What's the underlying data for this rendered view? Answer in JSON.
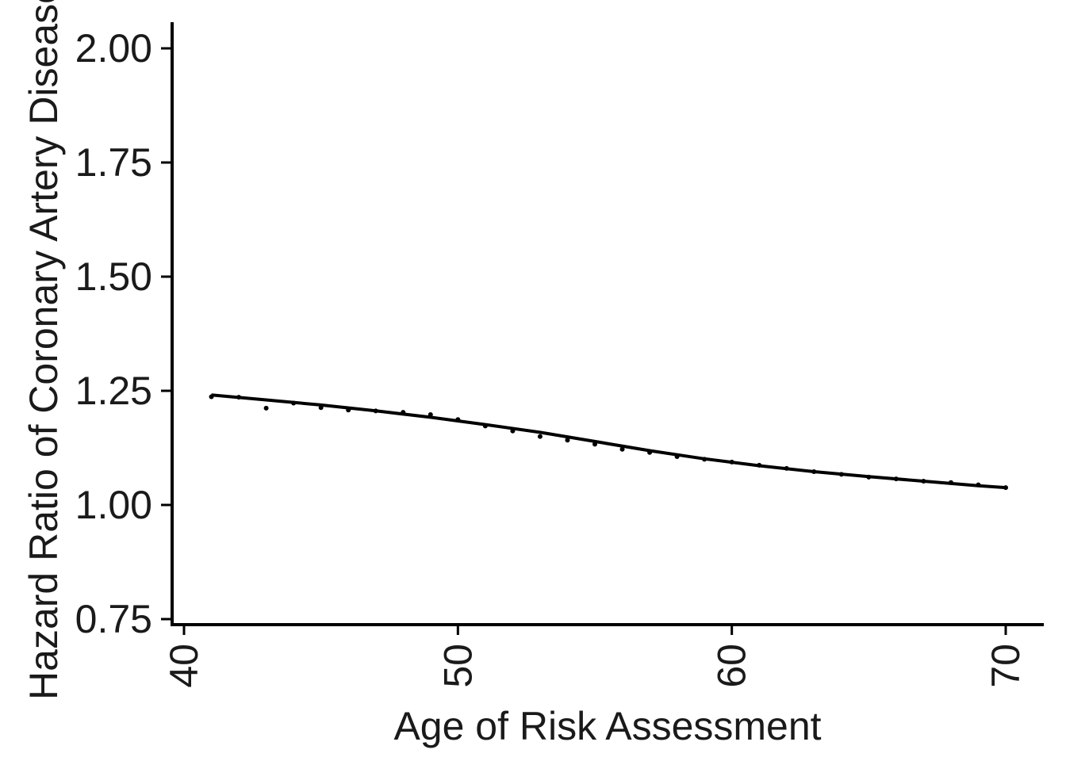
{
  "chart_data": {
    "type": "line",
    "title": "",
    "xlabel": "Age of Risk Assessment",
    "ylabel": "Hazard Ratio of Coronary Artery Disease",
    "xlim": [
      39.6,
      71.4
    ],
    "ylim": [
      0.75,
      2.05
    ],
    "x_ticks": [
      40,
      50,
      60,
      70
    ],
    "x_tick_labels": [
      "40",
      "50",
      "60",
      "70"
    ],
    "y_ticks": [
      0.75,
      1.0,
      1.25,
      1.5,
      1.75,
      2.0
    ],
    "y_tick_labels": [
      "0.75",
      "1.00",
      "1.25",
      "1.50",
      "1.75",
      "2.00"
    ],
    "grid": false,
    "series": [
      {
        "kind": "points",
        "x": [
          41,
          42,
          43,
          44,
          45,
          46,
          47,
          48,
          49,
          50,
          51,
          52,
          53,
          54,
          55,
          56,
          57,
          58,
          59,
          60,
          61,
          62,
          63,
          64,
          65,
          66,
          67,
          68,
          69,
          70
        ],
        "y": [
          1.237,
          1.236,
          1.212,
          1.223,
          1.213,
          1.208,
          1.206,
          1.203,
          1.198,
          1.187,
          1.173,
          1.162,
          1.15,
          1.142,
          1.133,
          1.122,
          1.115,
          1.106,
          1.1,
          1.094,
          1.087,
          1.08,
          1.073,
          1.067,
          1.061,
          1.057,
          1.052,
          1.049,
          1.044,
          1.038
        ]
      },
      {
        "kind": "smooth-line",
        "x": [
          41,
          43,
          45,
          47,
          49,
          51,
          53,
          55,
          57,
          59,
          61,
          63,
          65,
          67,
          69,
          70
        ],
        "y": [
          1.241,
          1.23,
          1.219,
          1.206,
          1.192,
          1.176,
          1.159,
          1.139,
          1.119,
          1.101,
          1.086,
          1.073,
          1.062,
          1.052,
          1.042,
          1.038
        ]
      }
    ]
  }
}
